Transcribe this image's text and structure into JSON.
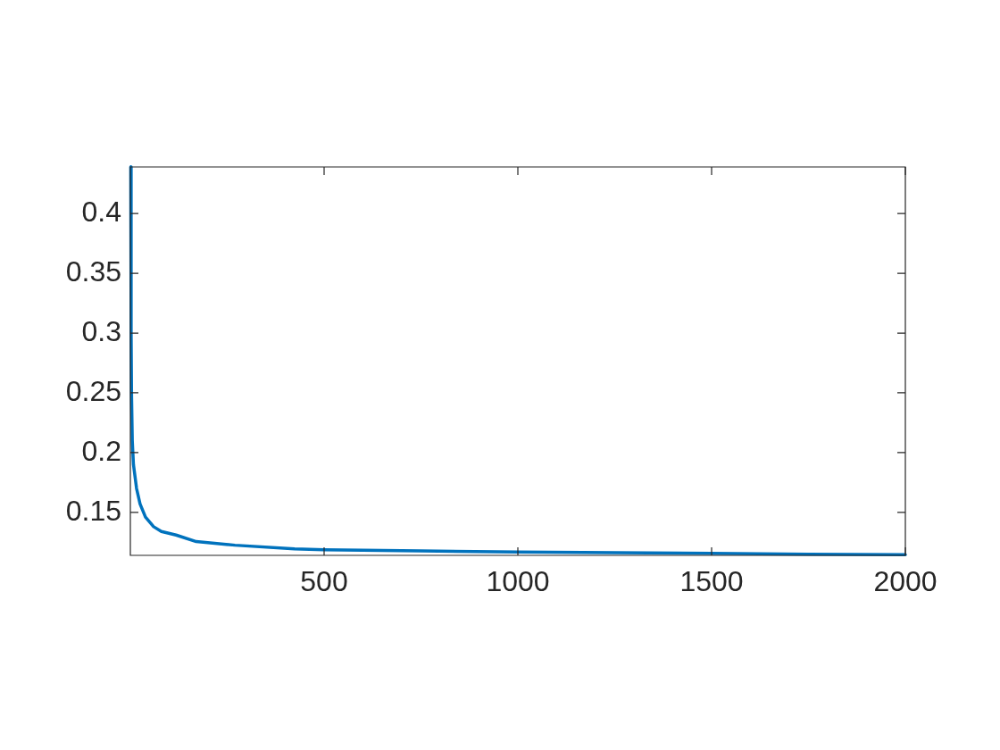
{
  "chart_data": {
    "type": "line",
    "x": [
      1,
      2,
      3,
      5,
      8,
      16,
      25,
      39,
      60,
      80,
      118,
      170,
      270,
      424,
      500,
      750,
      1000,
      1250,
      1500,
      1750,
      2000
    ],
    "series": [
      {
        "color": "#0072bd",
        "values": [
          0.439,
          0.3,
          0.25,
          0.21,
          0.19,
          0.17,
          0.157,
          0.146,
          0.138,
          0.134,
          0.131,
          0.1255,
          0.1225,
          0.1195,
          0.1187,
          0.1177,
          0.1168,
          0.1162,
          0.1157,
          0.115,
          0.1145
        ]
      }
    ],
    "xlim": [
      0,
      2000
    ],
    "ylim": [
      0.114,
      0.439
    ],
    "xticks": [
      500,
      1000,
      1500,
      2000
    ],
    "yticks": [
      0.15,
      0.2,
      0.25,
      0.3,
      0.35,
      0.4
    ],
    "grid": false,
    "legend": false,
    "marker": "none",
    "line_style": "solid"
  }
}
